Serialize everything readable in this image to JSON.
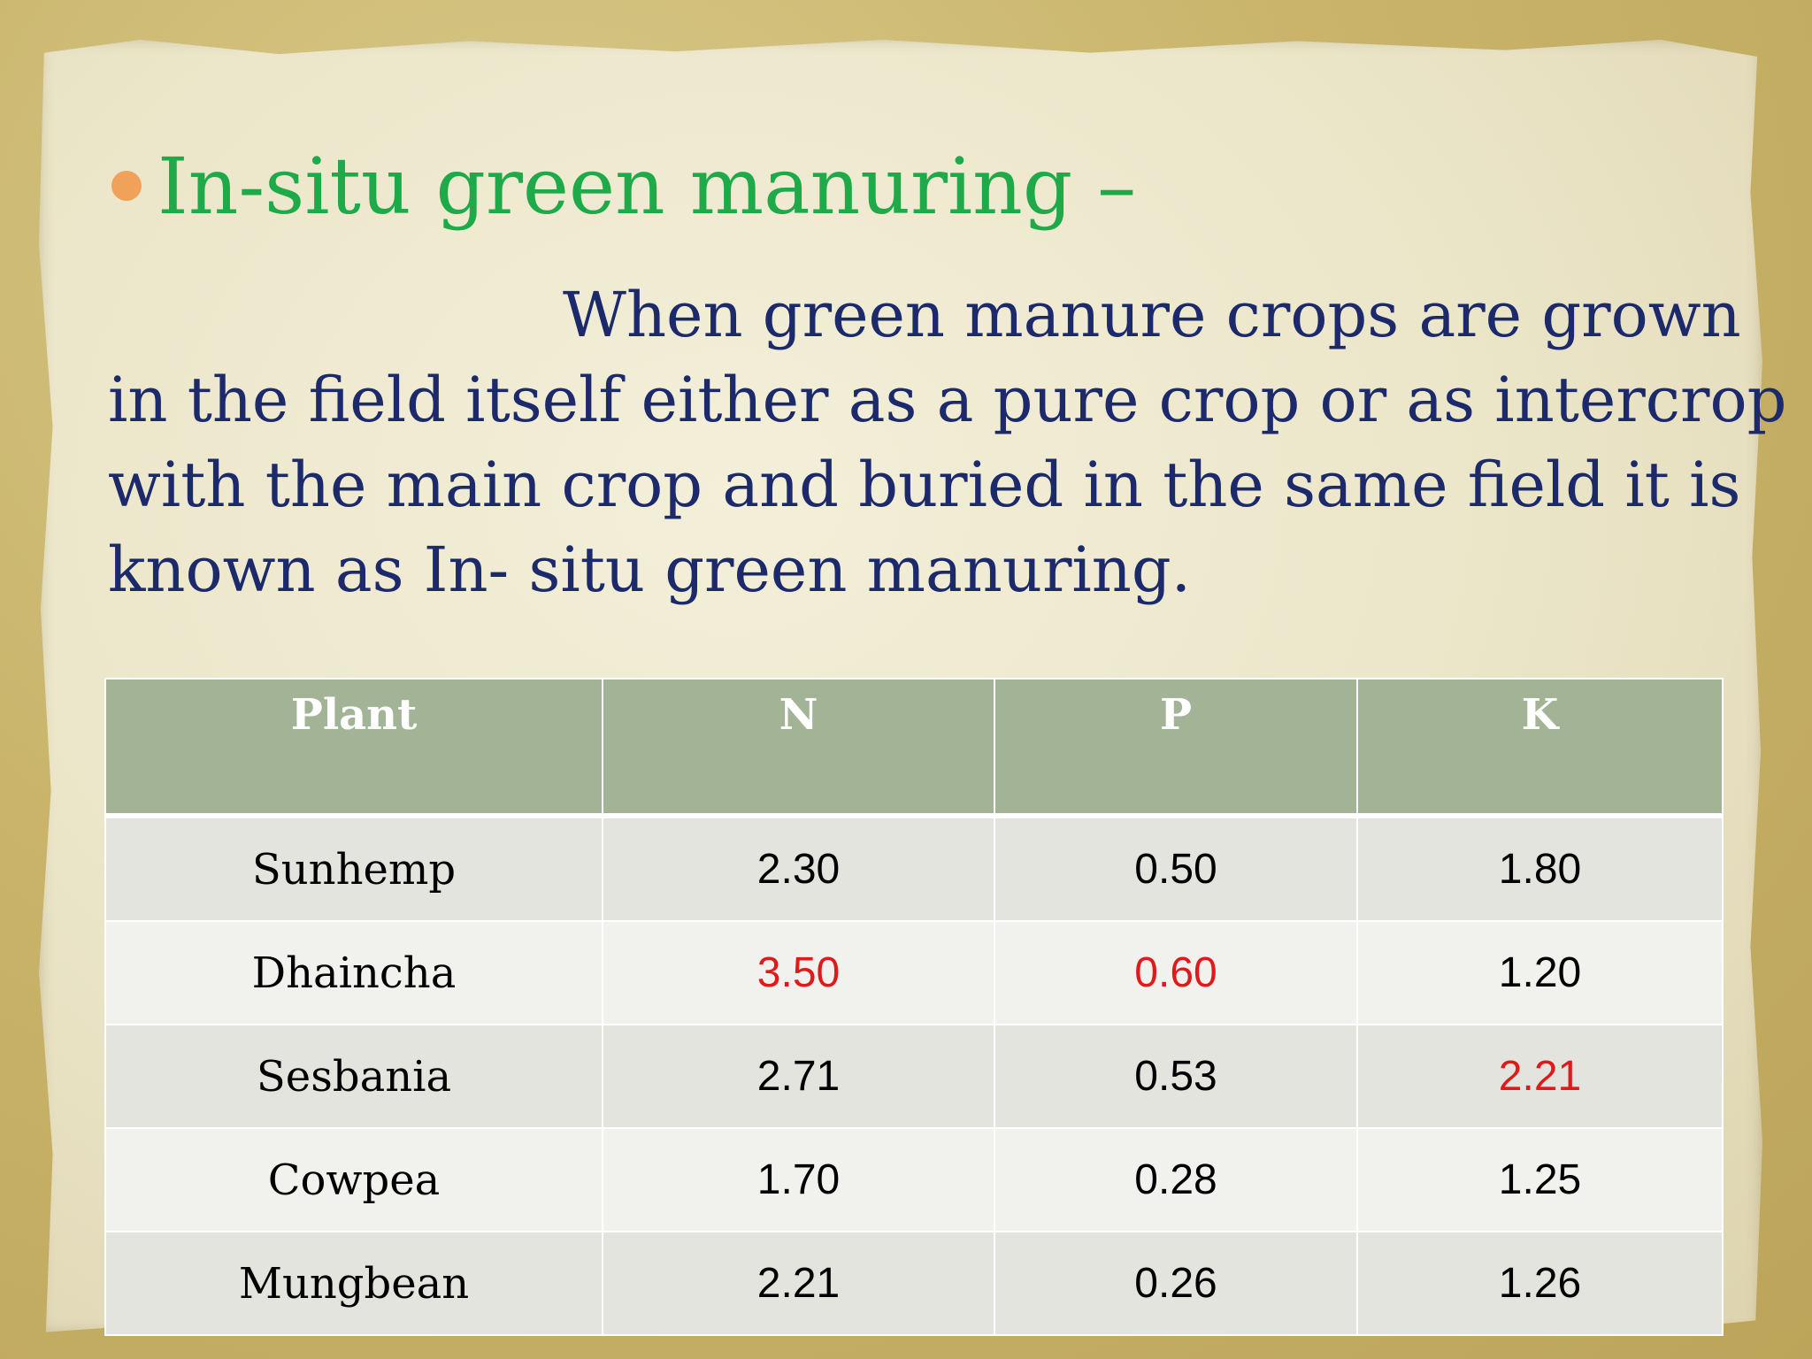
{
  "slide": {
    "title": "In-situ green manuring –",
    "body_lines": [
      "When green manure crops are grown",
      "in the field itself either as a pure crop or as intercrop",
      "with the main crop and buried in the same field it is",
      "known as In- situ green manuring."
    ]
  },
  "table": {
    "headers": [
      "Plant",
      "N",
      "P",
      "K"
    ],
    "rows": [
      {
        "plant": "Sunhemp",
        "n": "2.30",
        "p": "0.50",
        "k": "1.80"
      },
      {
        "plant": "Dhaincha",
        "n": "3.50",
        "p": "0.60",
        "k": "1.20"
      },
      {
        "plant": "Sesbania",
        "n": "2.71",
        "p": "0.53",
        "k": "2.21"
      },
      {
        "plant": "Cowpea",
        "n": "1.70",
        "p": "0.28",
        "k": "1.25"
      },
      {
        "plant": "Mungbean",
        "n": "2.21",
        "p": "0.26",
        "k": "1.26"
      }
    ],
    "highlight_color": "#e01a1a",
    "header_color": "#a3b396"
  }
}
